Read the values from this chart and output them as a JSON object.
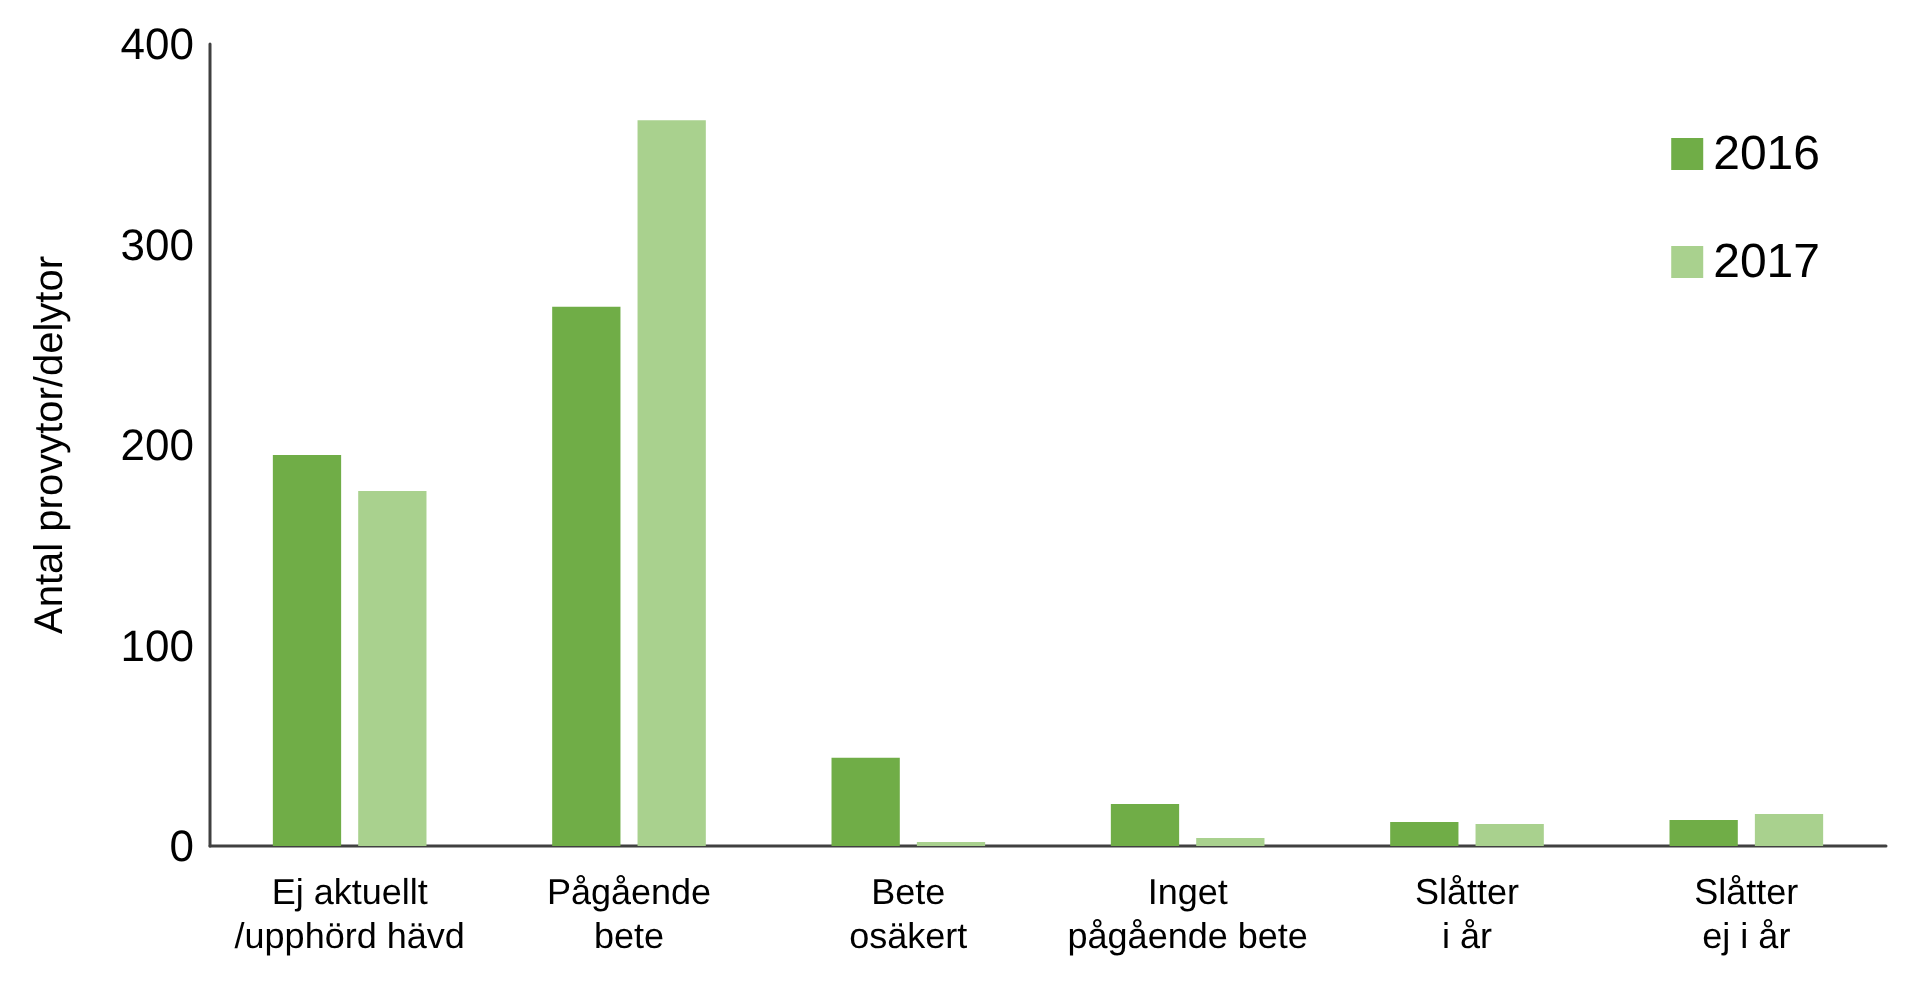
{
  "chart_data": {
    "type": "bar",
    "ylabel": "Antal provytor/delytor",
    "categories": [
      "Ej aktuellt\n/upphörd hävd",
      "Pågående\nbete",
      "Bete\nosäkert",
      "Inget\npågående bete",
      "Slåtter\ni år",
      "Slåtter\nej i år"
    ],
    "series": [
      {
        "name": "2016",
        "color": "#70ad47",
        "values": [
          195,
          269,
          44,
          21,
          12,
          13
        ]
      },
      {
        "name": "2017",
        "color": "#a9d18e",
        "values": [
          177,
          362,
          2,
          4,
          11,
          16
        ]
      }
    ],
    "ylim": [
      0,
      400
    ],
    "yticks": [
      0,
      100,
      200,
      300,
      400
    ],
    "grid": false,
    "legend": "top right"
  }
}
